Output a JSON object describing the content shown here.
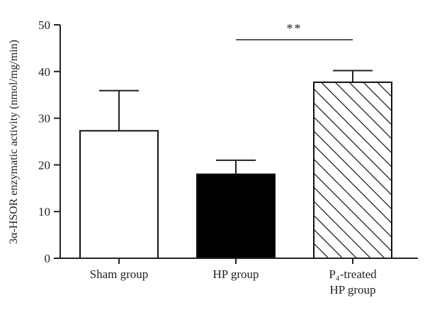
{
  "chart_data": {
    "type": "bar",
    "ylabel": "3α-HSOR enzymatic activity (nmol/mg/min)",
    "ylim": [
      0,
      50
    ],
    "yticks": [
      0,
      10,
      20,
      30,
      40,
      50
    ],
    "categories": [
      {
        "lines": [
          "Sham group"
        ]
      },
      {
        "lines": [
          "HP group"
        ]
      },
      {
        "lines": [
          "P₄-treated",
          "HP group"
        ]
      }
    ],
    "values": [
      27.3,
      18.0,
      37.7
    ],
    "errors": [
      8.6,
      3.0,
      2.5
    ],
    "fills": [
      "white",
      "black",
      "hatched"
    ],
    "significance": {
      "text": "**",
      "from": 1,
      "to": 2
    }
  },
  "colors": {
    "axis": "#222222",
    "bar_edge": "#111111",
    "hp_fill": "#000000",
    "background": "#ffffff"
  }
}
